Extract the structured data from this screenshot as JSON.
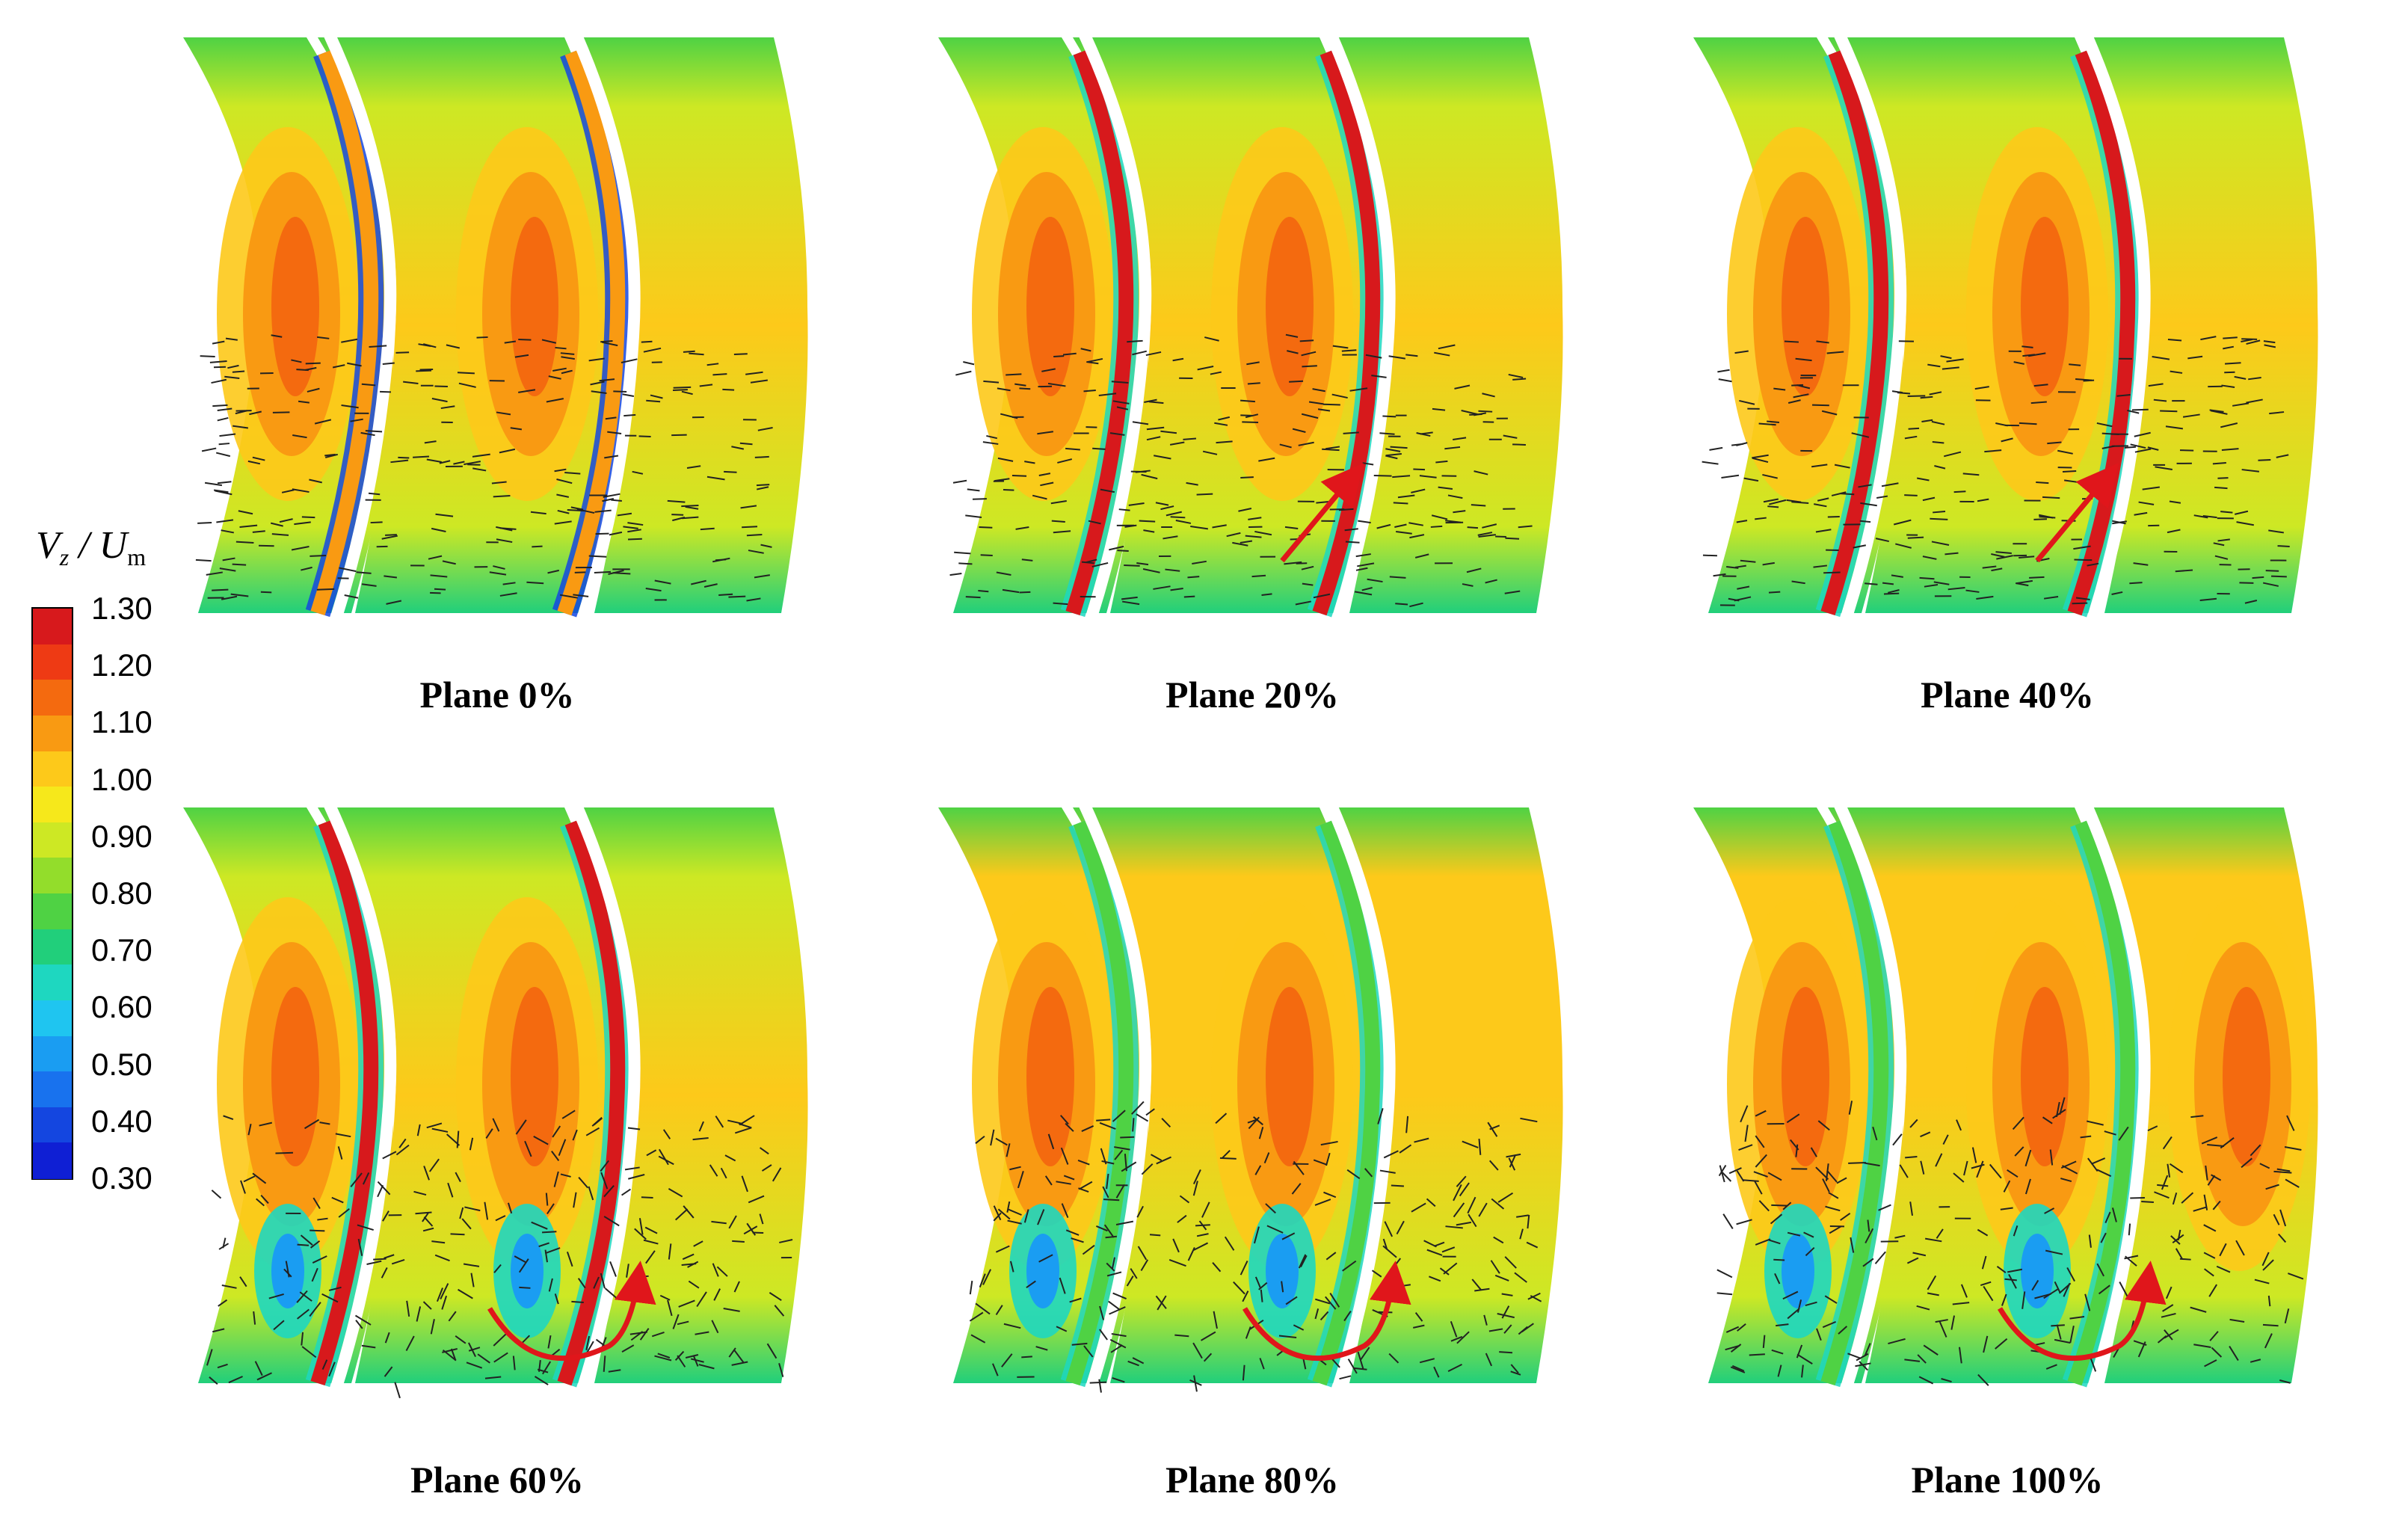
{
  "colorbar": {
    "title_main": "V",
    "title_sub_z": "z",
    "title_sep": " / U",
    "title_sub_m": "m",
    "ticks": [
      "1.30",
      "1.20",
      "1.10",
      "1.00",
      "0.90",
      "0.80",
      "0.70",
      "0.60",
      "0.50",
      "0.40",
      "0.30"
    ],
    "colors": [
      "#d7191c",
      "#ee3a14",
      "#f46a0f",
      "#f99a12",
      "#fdc91a",
      "#f6e81b",
      "#cde824",
      "#93dd2b",
      "#4fd244",
      "#21cf7b",
      "#1ed7c0",
      "#1fc5f0",
      "#1a9df2",
      "#1872ee",
      "#1446e0",
      "#0f1fd4"
    ]
  },
  "panels": [
    {
      "label": "Plane 0%",
      "arrow": "none"
    },
    {
      "label": "Plane 20%",
      "arrow": "straight"
    },
    {
      "label": "Plane 40%",
      "arrow": "straight"
    },
    {
      "label": "Plane 60%",
      "arrow": "curved"
    },
    {
      "label": "Plane 80%",
      "arrow": "curved"
    },
    {
      "label": "Plane 100%",
      "arrow": "curved"
    }
  ],
  "annotation_color": "#e0161b"
}
